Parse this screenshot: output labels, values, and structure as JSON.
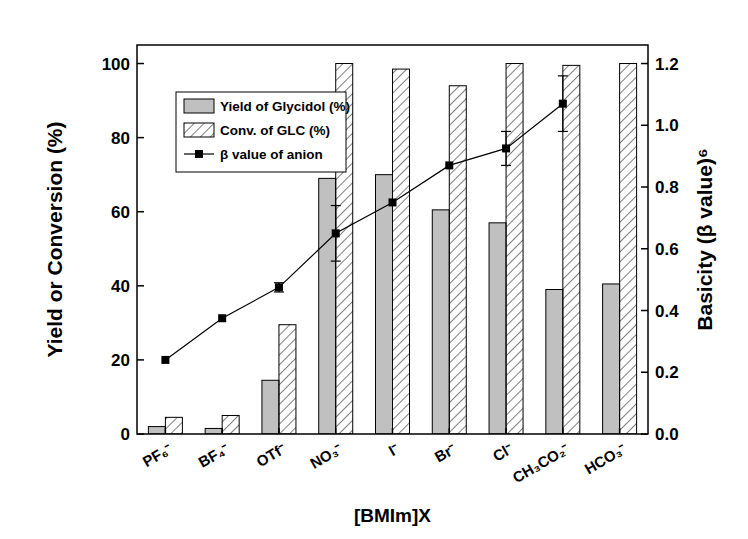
{
  "chart_data": {
    "type": "bar",
    "x_label": "[BMIm]X",
    "y_label": "Yield or Conversion (%)",
    "y2_label": "Basicity (β value)⁶",
    "categories": [
      "PF₆⁻",
      "BF₄⁻",
      "OTf⁻",
      "NO₃⁻",
      "I⁻",
      "Br⁻",
      "Cl⁻",
      "CH₃CO₂⁻",
      "HCO₃⁻"
    ],
    "series": [
      {
        "name": "Yield of Glycidol (%)",
        "type": "bar",
        "color": "#c0c0c0",
        "values": [
          2,
          1.5,
          14.5,
          69,
          70,
          60.5,
          57,
          39,
          40.5
        ]
      },
      {
        "name": "Conv. of GLC (%)",
        "type": "bar",
        "color": "#ffffff",
        "values": [
          4.5,
          5,
          29.5,
          100,
          98.5,
          94,
          100,
          99.5,
          100
        ]
      },
      {
        "name": "β value of anion",
        "type": "line",
        "axis": "y2",
        "color": "#000000",
        "marker": "square",
        "values": [
          0.24,
          0.375,
          0.475,
          0.65,
          0.75,
          0.87,
          0.925,
          1.07,
          null
        ],
        "errors": [
          0,
          0,
          0.015,
          0.09,
          0,
          0,
          0.055,
          0.09,
          null
        ]
      }
    ],
    "ylim": [
      0,
      105
    ],
    "yticks": [
      0,
      20,
      40,
      60,
      80,
      100
    ],
    "y2lim": [
      0,
      1.26
    ],
    "y2ticks": [
      {
        "value": 0,
        "label": "0.0"
      },
      0.2,
      0.4,
      0.6,
      0.8,
      {
        "value": 1,
        "label": "1.0"
      },
      1.2
    ],
    "legend": "upper left"
  }
}
